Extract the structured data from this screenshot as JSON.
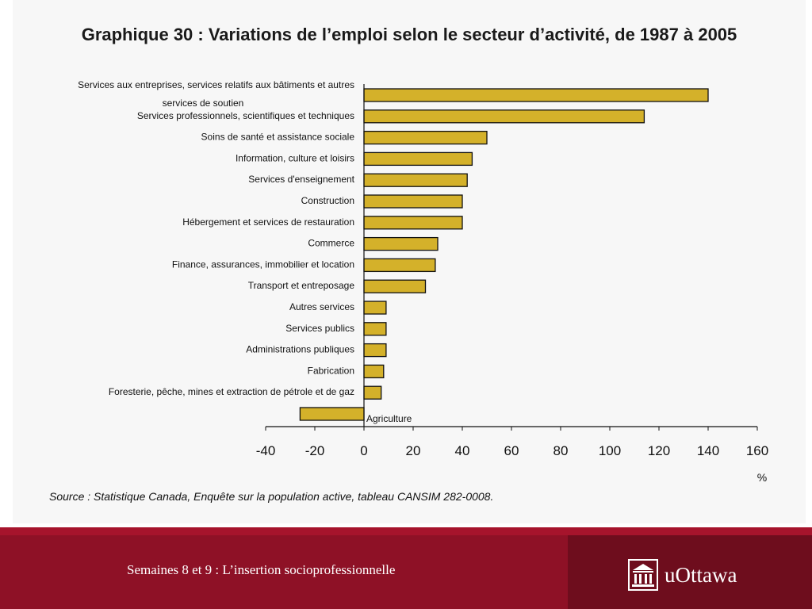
{
  "chart_data": {
    "type": "bar",
    "orientation": "horizontal",
    "title": "Graphique 30 : Variations de l’emploi selon le secteur d’activité, de 1987 à 2005",
    "categories": [
      "Services aux entreprises, services relatifs aux bâtiments et autres services de soutien",
      "Services professionnels, scientifiques et techniques",
      "Soins de santé et assistance sociale",
      "Information, culture et loisirs",
      "Services d'enseignement",
      "Construction",
      "Hébergement et services de restauration",
      "Commerce",
      "Finance, assurances, immobilier et location",
      "Transport et entreposage",
      "Autres services",
      "Services publics",
      "Administrations publiques",
      "Fabrication",
      "Foresterie, pêche, mines et extraction de pétrole et de gaz",
      "Agriculture"
    ],
    "values": [
      140,
      114,
      50,
      44,
      42,
      40,
      40,
      30,
      29,
      25,
      9,
      9,
      9,
      8,
      7,
      -26
    ],
    "xlabel": "%",
    "xlim": [
      -40,
      160
    ],
    "xticks": [
      -40,
      -20,
      0,
      20,
      40,
      60,
      80,
      100,
      120,
      140,
      160
    ],
    "grid": false,
    "bar_color": "#d4b12a",
    "source": "Source : Statistique Canada, Enquête sur la population active, tableau CANSIM 282-0008."
  },
  "footer": {
    "caption": "Semaines 8 et 9 : L’insertion socioprofessionnelle",
    "logo_text": "uOttawa",
    "logo_icon": "building-icon"
  },
  "colors": {
    "footer_bg": "#8e1126",
    "footer_dark": "#6e0d1d",
    "footer_line": "#a6142c"
  }
}
